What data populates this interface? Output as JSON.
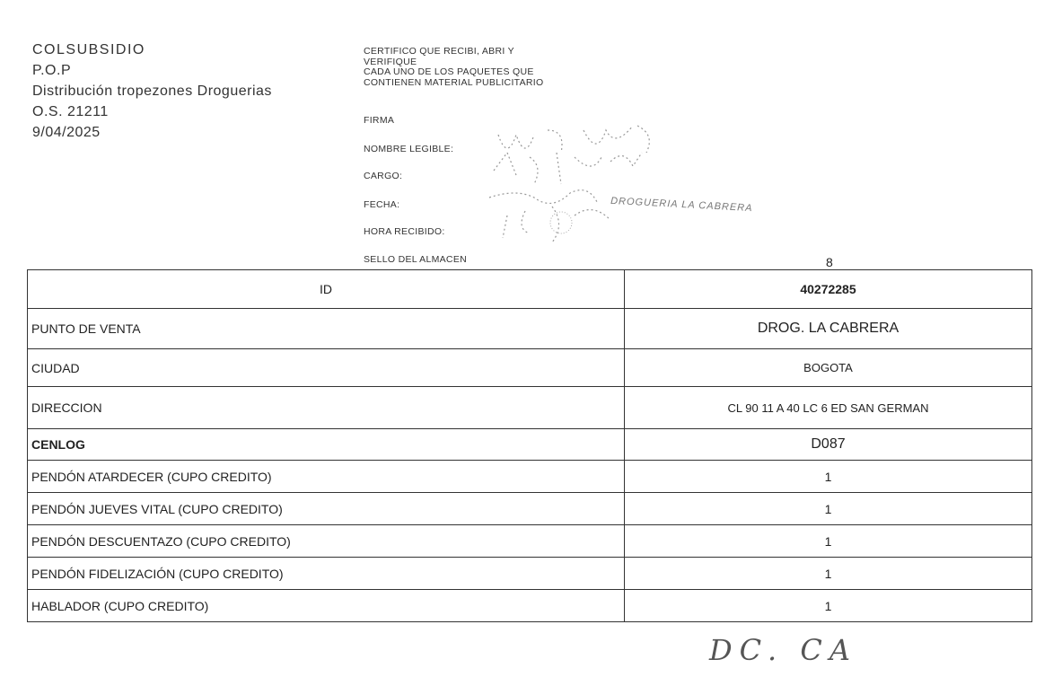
{
  "header": {
    "lines": [
      "COLSUBSIDIO",
      "P.O.P",
      "Distribución tropezones Droguerias",
      "O.S. 21211",
      "9/04/2025"
    ]
  },
  "certificate": {
    "lines": [
      "CERTIFICO QUE RECIBI, ABRI Y",
      "VERIFIQUE",
      "CADA UNO DE LOS PAQUETES QUE",
      "CONTIENEN MATERIAL PUBLICITARIO"
    ],
    "fields": [
      "FIRMA",
      "NOMBRE LEGIBLE:",
      "CARGO:",
      "FECHA:",
      "HORA RECIBIDO:",
      "SELLO DEL ALMACEN"
    ],
    "stamp_text": "DROGUERIA LA CABRERA"
  },
  "page_number": "8",
  "table": {
    "rows": [
      {
        "label": "ID",
        "value": "40272285",
        "bold_value": true,
        "center_label": true
      },
      {
        "label": "PUNTO DE VENTA",
        "value": "DROG. LA CABRERA"
      },
      {
        "label": "CIUDAD",
        "value": "BOGOTA"
      },
      {
        "label": "DIRECCION",
        "value": "CL 90 11 A 40 LC 6 ED SAN GERMAN"
      },
      {
        "label": "CENLOG",
        "value": "D087",
        "bold_label": true
      },
      {
        "label": "PENDÓN ATARDECER (CUPO CREDITO)",
        "value": "1"
      },
      {
        "label": "PENDÓN JUEVES VITAL (CUPO CREDITO)",
        "value": "1"
      },
      {
        "label": "PENDÓN DESCUENTAZO (CUPO CREDITO)",
        "value": "1"
      },
      {
        "label": "PENDÓN FIDELIZACIÓN (CUPO CREDITO)",
        "value": "1"
      },
      {
        "label": "HABLADOR (CUPO CREDITO)",
        "value": "1"
      }
    ]
  },
  "signature_bottom": "DC. CA"
}
